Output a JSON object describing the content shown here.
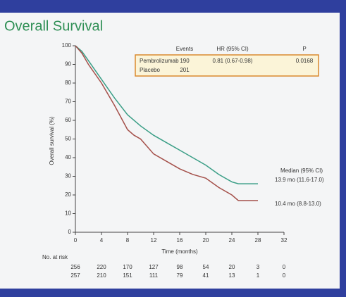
{
  "chart_data": {
    "type": "line",
    "title": "Overall Survival",
    "y_label": "Overall survival (%)",
    "x_label": "Time (months)",
    "xlim": [
      0,
      32
    ],
    "xticks": [
      0,
      4,
      8,
      12,
      16,
      20,
      24,
      28,
      32
    ],
    "ylim": [
      0,
      100
    ],
    "yticks": [
      0,
      10,
      20,
      30,
      40,
      50,
      60,
      70,
      80,
      90,
      100
    ],
    "series": [
      {
        "name": "Pembrolizumab",
        "color": "#3a9e86",
        "x": [
          0,
          1,
          2,
          4,
          6,
          8,
          10,
          12,
          14,
          16,
          18,
          20,
          22,
          24,
          25,
          28
        ],
        "values": [
          100,
          97,
          92,
          82,
          72,
          63,
          57,
          52,
          48,
          44,
          40,
          36,
          31,
          27,
          26,
          26
        ]
      },
      {
        "name": "Placebo",
        "color": "#a4504a",
        "x": [
          0,
          1,
          2,
          4,
          6,
          8,
          9,
          10,
          12,
          14,
          16,
          18,
          20,
          22,
          24,
          25,
          28
        ],
        "values": [
          100,
          96,
          90,
          80,
          68,
          55,
          52,
          50,
          42,
          38,
          34,
          31,
          29,
          24,
          20,
          17,
          17
        ]
      }
    ],
    "legend_table": {
      "headers": [
        "Events",
        "HR (95% CI)",
        "P"
      ],
      "rows": [
        [
          "190",
          "0.81 (0.67-0.98)",
          "0.0168"
        ],
        [
          "201"
        ]
      ]
    },
    "annotations": [
      "Median (95% CI)",
      "13.9 mo (11.6-17.0)",
      "10.4 mo (8.8-13.0)"
    ],
    "risk_table": {
      "title": "No. at risk",
      "rows": [
        [
          "256",
          "220",
          "170",
          "127",
          "98",
          "54",
          "20",
          "3",
          "0"
        ],
        [
          "257",
          "210",
          "151",
          "111",
          "79",
          "41",
          "13",
          "1",
          "0"
        ]
      ]
    }
  }
}
